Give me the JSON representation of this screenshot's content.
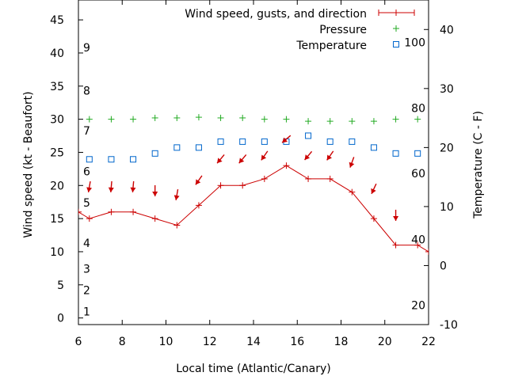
{
  "chart_data": {
    "type": "line",
    "xlabel": "Local time (Atlantic/Canary)",
    "ylabel_left": "Wind speed (kt - Beaufort)",
    "ylabel_right": "Temperature (C - F)",
    "xlim": [
      6,
      22
    ],
    "ylim_left": [
      -1,
      48
    ],
    "ylim_right": [
      -10,
      45
    ],
    "x_ticks": [
      6,
      8,
      10,
      12,
      14,
      16,
      18,
      20,
      22
    ],
    "y_left_ticks": [
      0,
      5,
      10,
      15,
      20,
      25,
      30,
      35,
      40,
      45
    ],
    "y_right_ticks": [
      -10,
      0,
      10,
      20,
      30,
      40
    ],
    "beaufort_labels": [
      {
        "label": "1",
        "kt": 1
      },
      {
        "label": "2",
        "kt": 4.2
      },
      {
        "label": "3",
        "kt": 7.4
      },
      {
        "label": "4",
        "kt": 11.3
      },
      {
        "label": "5",
        "kt": 17.4
      },
      {
        "label": "6",
        "kt": 22.1
      },
      {
        "label": "7",
        "kt": 28.3
      },
      {
        "label": "8",
        "kt": 34.3
      },
      {
        "label": "9",
        "kt": 40.8
      }
    ],
    "fahrenheit_labels": [
      {
        "label": "20",
        "celsius": -6.7
      },
      {
        "label": "40",
        "celsius": 4.4
      },
      {
        "label": "60",
        "celsius": 15.6
      },
      {
        "label": "80",
        "celsius": 26.7
      },
      {
        "label": "100",
        "celsius": 37.8
      }
    ],
    "legend": {
      "position": "top-right",
      "wind": "Wind speed, gusts, and direction",
      "pressure": "Pressure",
      "temperature": "Temperature"
    },
    "colors": {
      "wind": "#cc0000",
      "pressure": "#22aa22",
      "temperature": "#0066cc"
    },
    "series": [
      {
        "name": "Wind speed, gusts, and direction",
        "axis": "left",
        "x": [
          6,
          6.5,
          7.5,
          8.5,
          9.5,
          10.5,
          11.5,
          12.5,
          13.5,
          14.5,
          15.5,
          16.5,
          17.5,
          18.5,
          19.5,
          20.5,
          21.5,
          22
        ],
        "values": [
          16,
          15,
          16,
          16,
          15,
          14,
          17,
          20,
          20,
          21,
          23,
          21,
          21,
          19,
          15,
          11,
          11,
          10
        ]
      },
      {
        "name": "Pressure",
        "axis": "left",
        "x": [
          6.5,
          7.5,
          8.5,
          9.5,
          10.5,
          11.5,
          12.5,
          13.5,
          14.5,
          15.5,
          16.5,
          17.5,
          18.5,
          19.5,
          20.5,
          21.5
        ],
        "values": [
          30,
          30,
          30,
          30.2,
          30.2,
          30.3,
          30.2,
          30.2,
          30,
          30,
          29.7,
          29.7,
          29.7,
          29.7,
          30,
          30
        ]
      },
      {
        "name": "Temperature",
        "axis": "right",
        "x": [
          6.5,
          7.5,
          8.5,
          9.5,
          10.5,
          11.5,
          12.5,
          13.5,
          14.5,
          15.5,
          16.5,
          17.5,
          18.5,
          19.5,
          20.5,
          21.5
        ],
        "values": [
          18,
          18,
          18,
          19,
          20,
          20,
          21,
          21,
          21,
          21,
          22,
          21,
          21,
          20,
          19,
          19
        ]
      }
    ],
    "wind_direction_arrows": {
      "x": [
        6.5,
        7.5,
        8.5,
        9.5,
        10.5,
        11.5,
        12.5,
        13.5,
        14.5,
        15.5,
        16.5,
        17.5,
        18.5,
        19.5,
        20.5
      ],
      "kt": [
        19.8,
        19.8,
        19.8,
        19.2,
        18.6,
        20.8,
        24,
        24,
        24.5,
        27,
        24.5,
        24.5,
        23.5,
        19.5,
        15.5
      ],
      "toward_deg": [
        190,
        185,
        185,
        180,
        190,
        215,
        220,
        220,
        215,
        230,
        220,
        215,
        200,
        205,
        180
      ],
      "offscreen_x": 6,
      "offscreen_kt": 20.6
    }
  }
}
